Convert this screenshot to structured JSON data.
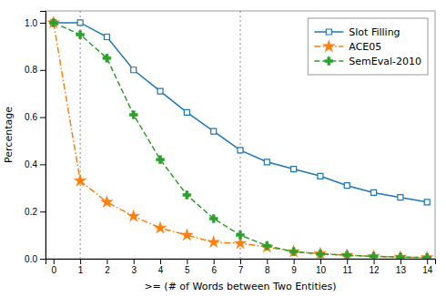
{
  "chart_data": {
    "type": "line",
    "xlabel": ">= (# of Words between Two Entities)",
    "ylabel": "Percentage",
    "x": [
      0,
      1,
      2,
      3,
      4,
      5,
      6,
      7,
      8,
      9,
      10,
      11,
      12,
      13,
      14
    ],
    "series": [
      {
        "name": "Slot Filling",
        "marker": "square",
        "line_style": "solid",
        "values": [
          1.0,
          1.0,
          0.94,
          0.8,
          0.71,
          0.62,
          0.54,
          0.46,
          0.41,
          0.38,
          0.35,
          0.31,
          0.28,
          0.26,
          0.24
        ]
      },
      {
        "name": "ACE05",
        "marker": "star",
        "line_style": "dashdot",
        "values": [
          1.0,
          0.33,
          0.24,
          0.18,
          0.13,
          0.1,
          0.07,
          0.065,
          0.05,
          0.03,
          0.022,
          0.015,
          0.01,
          0.007,
          0.005
        ]
      },
      {
        "name": "SemEval-2010",
        "marker": "plus",
        "line_style": "dashed",
        "values": [
          1.0,
          0.95,
          0.85,
          0.61,
          0.42,
          0.27,
          0.17,
          0.1,
          0.055,
          0.03,
          0.02,
          0.015,
          0.01,
          0.007,
          0.005
        ]
      }
    ],
    "vlines": [
      1,
      7
    ],
    "xlim": [
      -0.3,
      14.3
    ],
    "ylim": [
      0,
      1.05
    ],
    "xticks": [
      0,
      1,
      2,
      3,
      4,
      5,
      6,
      7,
      8,
      9,
      10,
      11,
      12,
      13,
      14
    ],
    "yticks": [
      {
        "value": 0,
        "label": "0.0"
      },
      0.2,
      0.4,
      0.6,
      0.8,
      {
        "value": 1.0,
        "label": "1.0"
      }
    ],
    "grid": false,
    "legend": "upper right"
  }
}
